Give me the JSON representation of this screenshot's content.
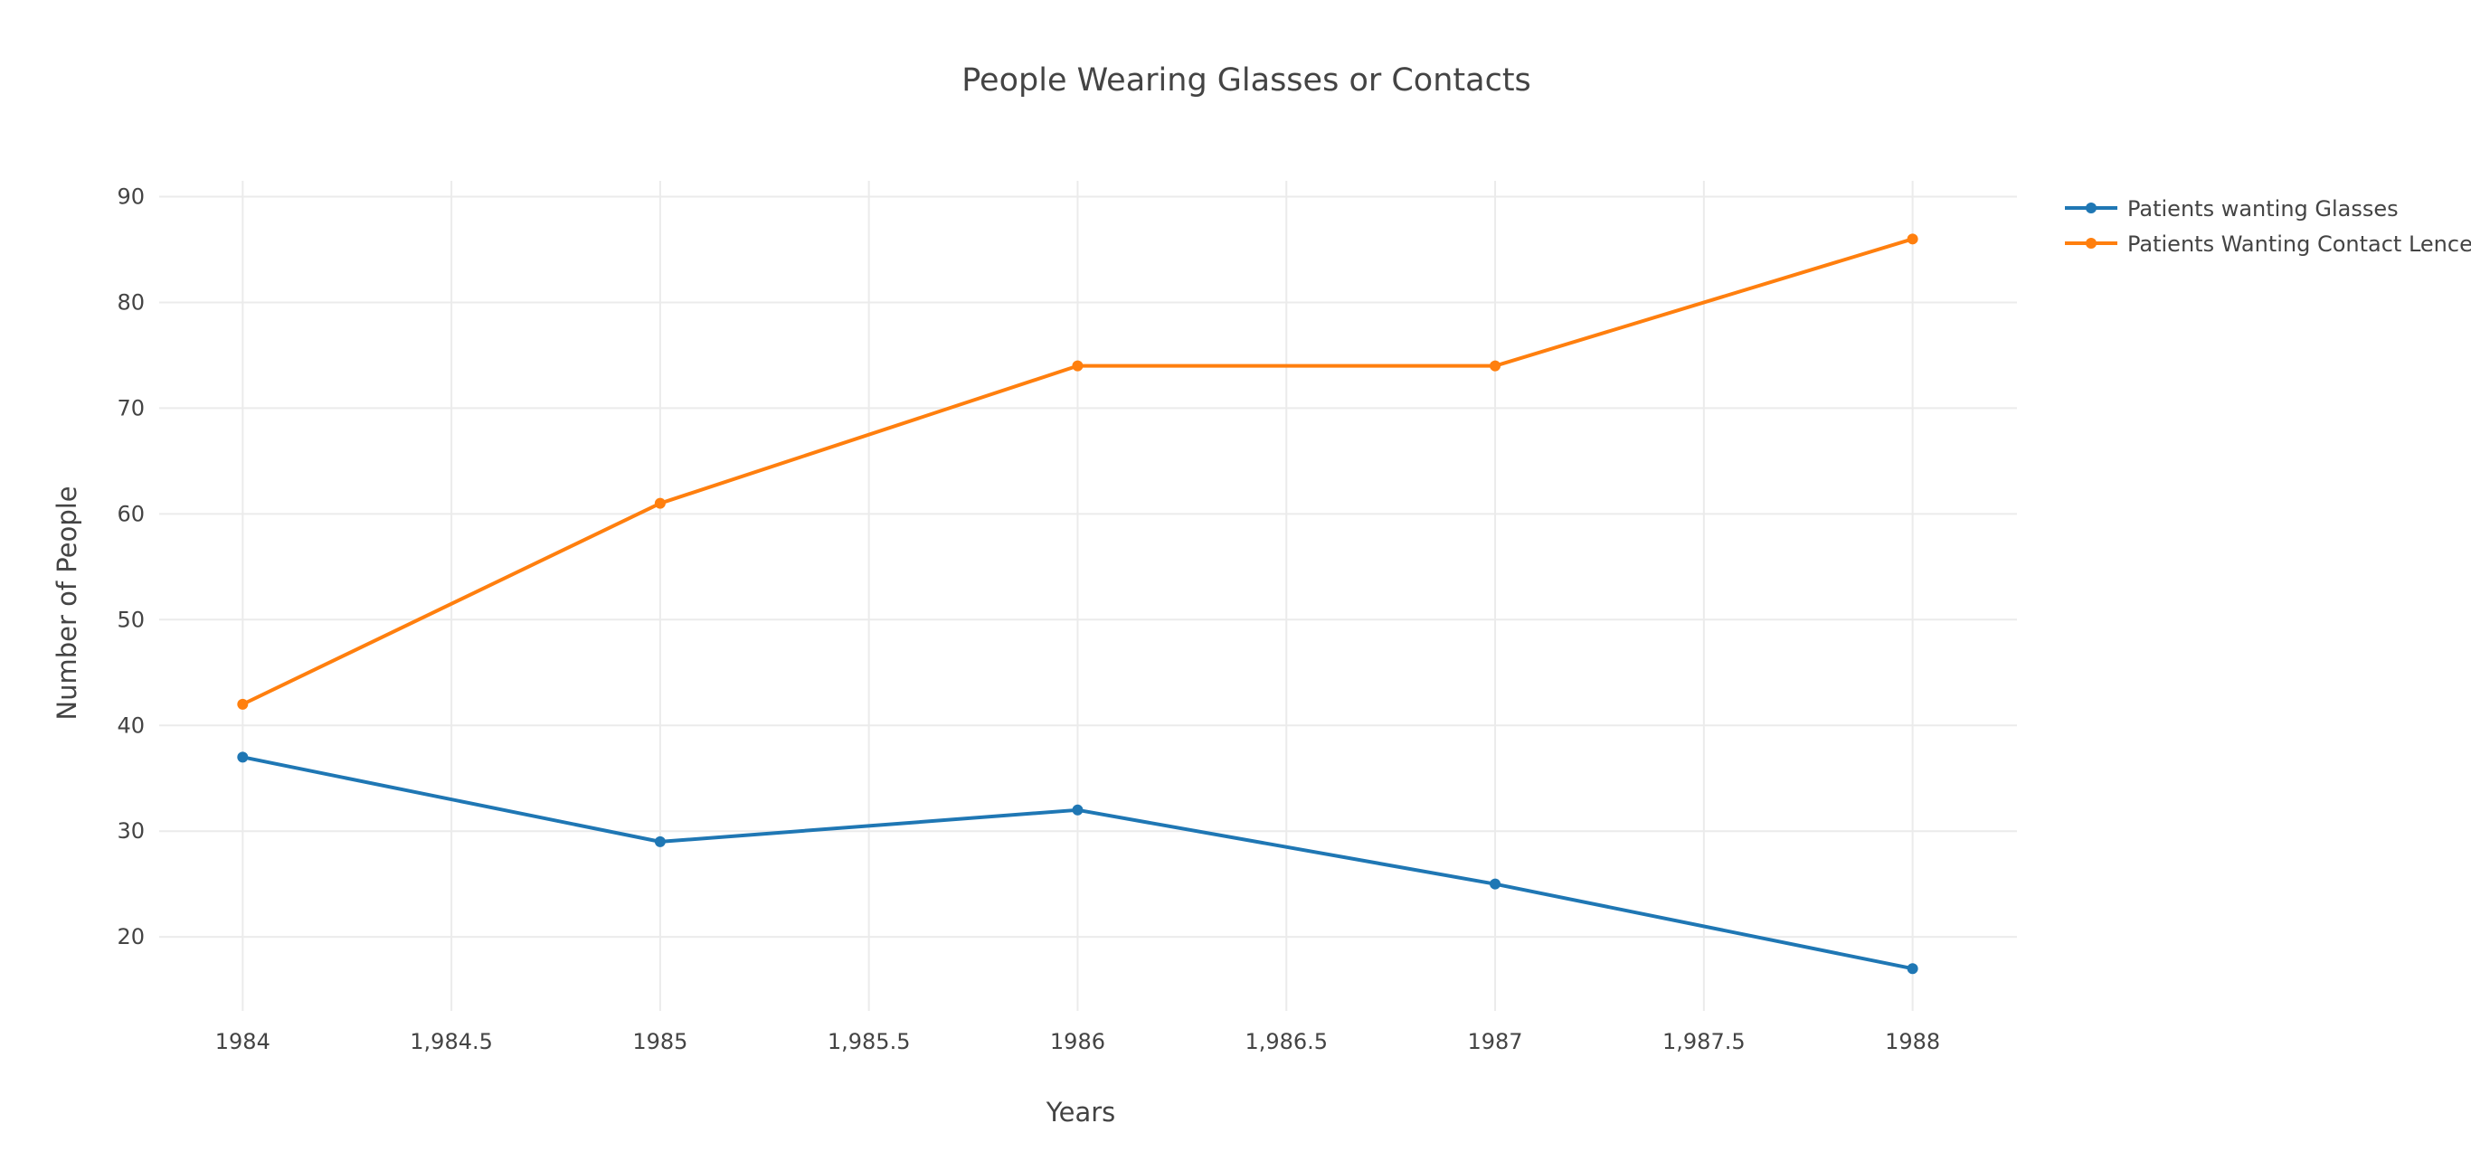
{
  "chart_data": {
    "type": "line",
    "title": "People Wearing Glasses or Contacts",
    "xlabel": "Years",
    "ylabel": "Number of People",
    "x": [
      1984,
      1985,
      1986,
      1987,
      1988
    ],
    "xlim": [
      1983.8,
      1988.25
    ],
    "ylim": [
      13,
      91.5
    ],
    "x_ticks": [
      1984,
      1984.5,
      1985,
      1985.5,
      1986,
      1986.5,
      1987,
      1987.5,
      1988
    ],
    "x_tick_labels": [
      "1984",
      "1,984.5",
      "1985",
      "1,985.5",
      "1986",
      "1,986.5",
      "1987",
      "1,987.5",
      "1988"
    ],
    "y_ticks": [
      20,
      30,
      40,
      50,
      60,
      70,
      80,
      90
    ],
    "y_tick_labels": [
      "20",
      "30",
      "40",
      "50",
      "60",
      "70",
      "80",
      "90"
    ],
    "grid": true,
    "legend_position": "top-right",
    "series": [
      {
        "name": "Patients wanting Glasses",
        "color": "#1f77b4",
        "values": [
          37,
          29,
          32,
          25,
          17
        ]
      },
      {
        "name": "Patients Wanting Contact Lences",
        "color": "#ff7f0e",
        "values": [
          42,
          61,
          74,
          74,
          86
        ]
      }
    ]
  }
}
